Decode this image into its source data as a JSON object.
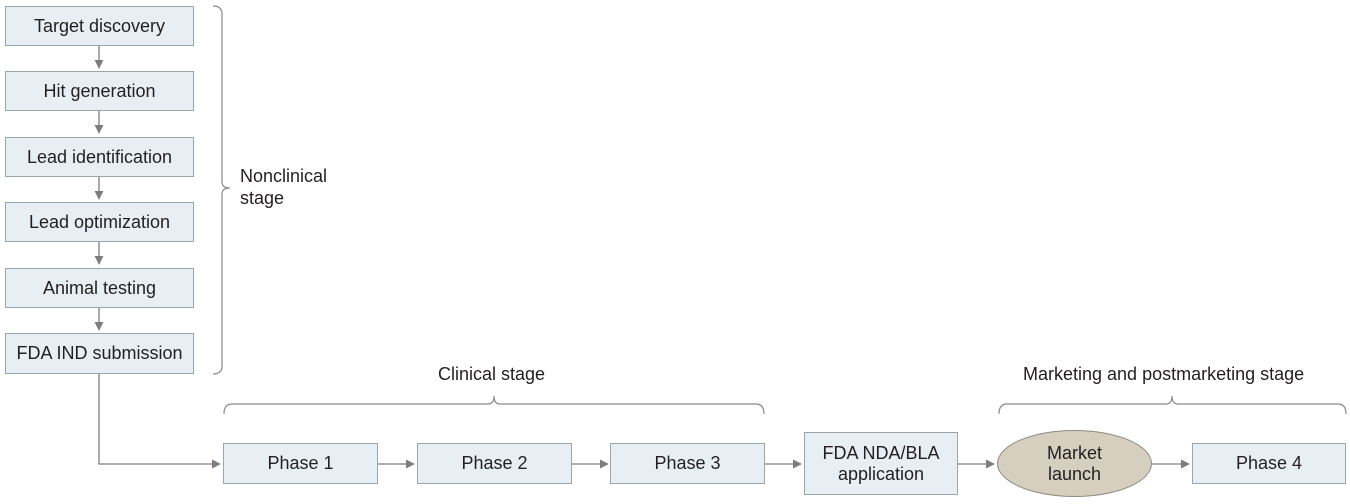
{
  "nonclinical": {
    "steps": [
      {
        "label": "Target discovery"
      },
      {
        "label": "Hit generation"
      },
      {
        "label": "Lead identification"
      },
      {
        "label": "Lead optimization"
      },
      {
        "label": "Animal testing"
      },
      {
        "label": "FDA IND submission"
      }
    ],
    "stage_label": "Nonclinical\nstage"
  },
  "clinical": {
    "stage_label": "Clinical stage",
    "phases": [
      {
        "label": "Phase 1"
      },
      {
        "label": "Phase 2"
      },
      {
        "label": "Phase 3"
      }
    ]
  },
  "approval": {
    "label": "FDA NDA/BLA\napplication"
  },
  "marketing": {
    "stage_label": "Marketing and postmarketing stage",
    "launch_label": "Market\nlaunch",
    "phase4_label": "Phase 4"
  },
  "colors": {
    "box_fill": "#e8eff4",
    "oval_fill": "#d6cfc0",
    "connector": "#7d7d7d"
  }
}
